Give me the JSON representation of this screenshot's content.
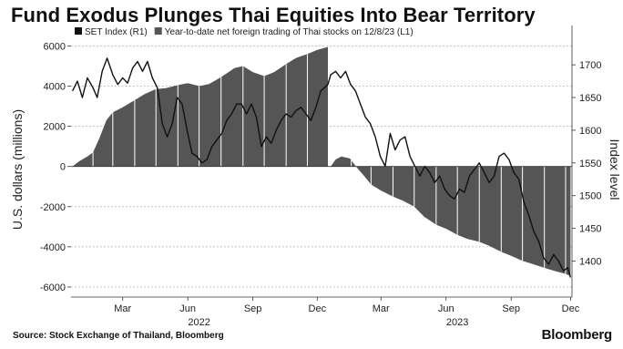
{
  "title": "Fund Exodus Plunges Thai Equities Into Bear Territory",
  "source": "Source: Stock Exchange of Thailand, Bloomberg",
  "brand": "Bloomberg",
  "chart_data": {
    "type": "bar+line",
    "legend": [
      {
        "name": "SET Index (R1)",
        "swatch": "#111111"
      },
      {
        "name": "Year-to-date net foreign trading of Thai stocks on 12/8/23 (L1)",
        "swatch": "#555555"
      }
    ],
    "y_left": {
      "label": "U.S. dollars (millions)",
      "ylim": [
        -6500,
        6200
      ],
      "ticks": [
        -6000,
        -4000,
        -2000,
        0,
        2000,
        4000,
        6000
      ],
      "tick_labels": [
        "-6000",
        "-4000",
        "-2000",
        "0",
        "2000",
        "4000",
        "6000"
      ]
    },
    "y_right": {
      "label": "Index level",
      "ylim": [
        1345,
        1735
      ],
      "ticks": [
        1400,
        1450,
        1500,
        1550,
        1600,
        1650,
        1700
      ],
      "tick_labels": [
        "1400",
        "1450",
        "1500",
        "1550",
        "1600",
        "1650",
        "1700"
      ]
    },
    "x_axis": {
      "range": [
        "2022-01-01",
        "2023-12-10"
      ],
      "ticks": [
        {
          "date": "2022-03-15",
          "label": "Mar"
        },
        {
          "date": "2022-06-15",
          "label": "Jun"
        },
        {
          "date": "2022-09-15",
          "label": "Sep"
        },
        {
          "date": "2022-12-15",
          "label": "Dec"
        },
        {
          "date": "2023-03-15",
          "label": "Mar"
        },
        {
          "date": "2023-06-15",
          "label": "Jun"
        },
        {
          "date": "2023-09-15",
          "label": "Sep"
        },
        {
          "date": "2023-12-08",
          "label": "Dec"
        }
      ],
      "year_labels": [
        {
          "date": "2022-07-01",
          "label": "2022"
        },
        {
          "date": "2023-07-01",
          "label": "2023"
        }
      ]
    },
    "series": [
      {
        "name": "Year-to-date net foreign trading of Thai stocks on 12/8/23 (L1)",
        "kind": "area",
        "color": "#555555",
        "points": [
          [
            "2022-01-03",
            0
          ],
          [
            "2022-01-12",
            250
          ],
          [
            "2022-01-24",
            500
          ],
          [
            "2022-02-01",
            700
          ],
          [
            "2022-02-10",
            1400
          ],
          [
            "2022-02-20",
            2300
          ],
          [
            "2022-03-01",
            2700
          ],
          [
            "2022-03-15",
            2950
          ],
          [
            "2022-04-01",
            3300
          ],
          [
            "2022-04-15",
            3600
          ],
          [
            "2022-05-01",
            3850
          ],
          [
            "2022-05-15",
            3900
          ],
          [
            "2022-06-01",
            4050
          ],
          [
            "2022-06-15",
            4150
          ],
          [
            "2022-07-01",
            4000
          ],
          [
            "2022-07-15",
            4100
          ],
          [
            "2022-08-01",
            4450
          ],
          [
            "2022-08-20",
            4900
          ],
          [
            "2022-09-01",
            5000
          ],
          [
            "2022-09-15",
            4700
          ],
          [
            "2022-10-01",
            4500
          ],
          [
            "2022-10-15",
            4700
          ],
          [
            "2022-11-01",
            5100
          ],
          [
            "2022-11-15",
            5400
          ],
          [
            "2022-12-01",
            5600
          ],
          [
            "2022-12-15",
            5800
          ],
          [
            "2022-12-30",
            5950
          ]
        ]
      },
      {
        "name": "Year-to-date net foreign trading of Thai stocks on 12/8/23 (L1) - 2023",
        "kind": "area",
        "color": "#555555",
        "points": [
          [
            "2023-01-03",
            0
          ],
          [
            "2023-01-10",
            350
          ],
          [
            "2023-01-18",
            500
          ],
          [
            "2023-01-30",
            400
          ],
          [
            "2023-02-10",
            -100
          ],
          [
            "2023-02-20",
            -500
          ],
          [
            "2023-03-01",
            -900
          ],
          [
            "2023-03-15",
            -1200
          ],
          [
            "2023-04-01",
            -1500
          ],
          [
            "2023-04-15",
            -1700
          ],
          [
            "2023-05-01",
            -2000
          ],
          [
            "2023-05-15",
            -2500
          ],
          [
            "2023-06-01",
            -2900
          ],
          [
            "2023-06-15",
            -3100
          ],
          [
            "2023-07-01",
            -3400
          ],
          [
            "2023-07-15",
            -3600
          ],
          [
            "2023-08-01",
            -3750
          ],
          [
            "2023-08-15",
            -3950
          ],
          [
            "2023-09-01",
            -4250
          ],
          [
            "2023-09-15",
            -4450
          ],
          [
            "2023-10-01",
            -4700
          ],
          [
            "2023-10-15",
            -4850
          ],
          [
            "2023-11-01",
            -5050
          ],
          [
            "2023-11-15",
            -5200
          ],
          [
            "2023-12-01",
            -5350
          ],
          [
            "2023-12-08",
            -5450
          ]
        ]
      },
      {
        "name": "SET Index (R1)",
        "kind": "line",
        "color": "#111111",
        "points": [
          [
            "2022-01-03",
            1660
          ],
          [
            "2022-01-10",
            1675
          ],
          [
            "2022-01-17",
            1650
          ],
          [
            "2022-01-24",
            1680
          ],
          [
            "2022-02-01",
            1665
          ],
          [
            "2022-02-07",
            1650
          ],
          [
            "2022-02-14",
            1690
          ],
          [
            "2022-02-21",
            1710
          ],
          [
            "2022-03-01",
            1685
          ],
          [
            "2022-03-08",
            1670
          ],
          [
            "2022-03-15",
            1680
          ],
          [
            "2022-03-22",
            1672
          ],
          [
            "2022-03-29",
            1695
          ],
          [
            "2022-04-05",
            1705
          ],
          [
            "2022-04-12",
            1690
          ],
          [
            "2022-04-19",
            1705
          ],
          [
            "2022-04-26",
            1680
          ],
          [
            "2022-05-03",
            1665
          ],
          [
            "2022-05-10",
            1610
          ],
          [
            "2022-05-17",
            1590
          ],
          [
            "2022-05-24",
            1610
          ],
          [
            "2022-05-31",
            1650
          ],
          [
            "2022-06-07",
            1640
          ],
          [
            "2022-06-14",
            1600
          ],
          [
            "2022-06-21",
            1565
          ],
          [
            "2022-06-28",
            1560
          ],
          [
            "2022-07-05",
            1550
          ],
          [
            "2022-07-12",
            1555
          ],
          [
            "2022-07-19",
            1575
          ],
          [
            "2022-07-26",
            1585
          ],
          [
            "2022-08-02",
            1595
          ],
          [
            "2022-08-09",
            1615
          ],
          [
            "2022-08-16",
            1625
          ],
          [
            "2022-08-23",
            1640
          ],
          [
            "2022-08-30",
            1640
          ],
          [
            "2022-09-06",
            1625
          ],
          [
            "2022-09-13",
            1640
          ],
          [
            "2022-09-20",
            1620
          ],
          [
            "2022-09-27",
            1575
          ],
          [
            "2022-10-04",
            1590
          ],
          [
            "2022-10-11",
            1580
          ],
          [
            "2022-10-18",
            1600
          ],
          [
            "2022-10-25",
            1615
          ],
          [
            "2022-11-01",
            1625
          ],
          [
            "2022-11-08",
            1620
          ],
          [
            "2022-11-15",
            1630
          ],
          [
            "2022-11-22",
            1635
          ],
          [
            "2022-11-29",
            1625
          ],
          [
            "2022-12-06",
            1615
          ],
          [
            "2022-12-13",
            1635
          ],
          [
            "2022-12-20",
            1660
          ],
          [
            "2022-12-30",
            1670
          ],
          [
            "2023-01-03",
            1685
          ],
          [
            "2023-01-10",
            1690
          ],
          [
            "2023-01-17",
            1680
          ],
          [
            "2023-01-24",
            1690
          ],
          [
            "2023-01-31",
            1670
          ],
          [
            "2023-02-07",
            1660
          ],
          [
            "2023-02-14",
            1640
          ],
          [
            "2023-02-21",
            1620
          ],
          [
            "2023-02-28",
            1610
          ],
          [
            "2023-03-07",
            1590
          ],
          [
            "2023-03-14",
            1560
          ],
          [
            "2023-03-21",
            1545
          ],
          [
            "2023-03-28",
            1595
          ],
          [
            "2023-04-04",
            1570
          ],
          [
            "2023-04-11",
            1585
          ],
          [
            "2023-04-18",
            1590
          ],
          [
            "2023-04-25",
            1560
          ],
          [
            "2023-05-02",
            1545
          ],
          [
            "2023-05-09",
            1530
          ],
          [
            "2023-05-16",
            1545
          ],
          [
            "2023-05-23",
            1535
          ],
          [
            "2023-05-30",
            1520
          ],
          [
            "2023-06-06",
            1530
          ],
          [
            "2023-06-13",
            1510
          ],
          [
            "2023-06-20",
            1500
          ],
          [
            "2023-06-27",
            1495
          ],
          [
            "2023-07-04",
            1510
          ],
          [
            "2023-07-11",
            1505
          ],
          [
            "2023-07-18",
            1530
          ],
          [
            "2023-07-25",
            1540
          ],
          [
            "2023-08-01",
            1550
          ],
          [
            "2023-08-08",
            1535
          ],
          [
            "2023-08-15",
            1520
          ],
          [
            "2023-08-22",
            1530
          ],
          [
            "2023-08-29",
            1560
          ],
          [
            "2023-09-05",
            1565
          ],
          [
            "2023-09-12",
            1555
          ],
          [
            "2023-09-19",
            1535
          ],
          [
            "2023-09-26",
            1525
          ],
          [
            "2023-10-03",
            1490
          ],
          [
            "2023-10-10",
            1470
          ],
          [
            "2023-10-17",
            1445
          ],
          [
            "2023-10-24",
            1430
          ],
          [
            "2023-10-31",
            1405
          ],
          [
            "2023-11-07",
            1395
          ],
          [
            "2023-11-14",
            1410
          ],
          [
            "2023-11-21",
            1400
          ],
          [
            "2023-11-28",
            1385
          ],
          [
            "2023-12-04",
            1390
          ],
          [
            "2023-12-08",
            1375
          ]
        ]
      }
    ],
    "grid": "horizontal dotted"
  }
}
